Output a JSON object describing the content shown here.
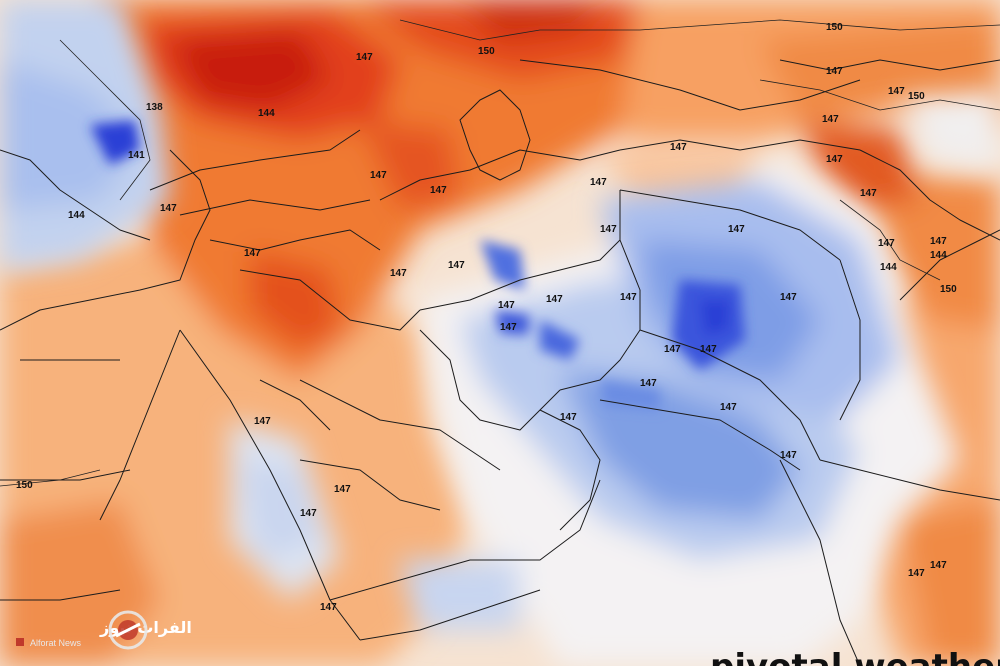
{
  "map": {
    "contour_labels": [
      "150",
      "150",
      "150",
      "147",
      "147",
      "147",
      "147",
      "147",
      "147",
      "147",
      "147",
      "147",
      "147",
      "147",
      "147",
      "147",
      "147",
      "147",
      "147",
      "147",
      "147",
      "147",
      "147",
      "147",
      "147",
      "147",
      "147",
      "147",
      "147",
      "147",
      "147",
      "147",
      "147",
      "147",
      "147",
      "147",
      "147",
      "147",
      "144",
      "144",
      "144",
      "144",
      "141",
      "138",
      "150",
      "150"
    ],
    "watermark": "pivotal weather",
    "colors": {
      "deep_red": "#c81e0c",
      "red": "#e2401a",
      "orange": "#f07a30",
      "light_orange": "#f7b27c",
      "peach": "#fbd8bd",
      "white": "#f4f2f3",
      "light_blue": "#c2d2ef",
      "blue": "#7f9fe4",
      "mid_blue": "#4f6fe0",
      "deep_blue": "#2a3fd6",
      "border": "#1c1c1c"
    }
  },
  "logo": {
    "name_ar": "الفرات نيوز",
    "name_en": "Alforat News",
    "accent": "#c0392b"
  }
}
